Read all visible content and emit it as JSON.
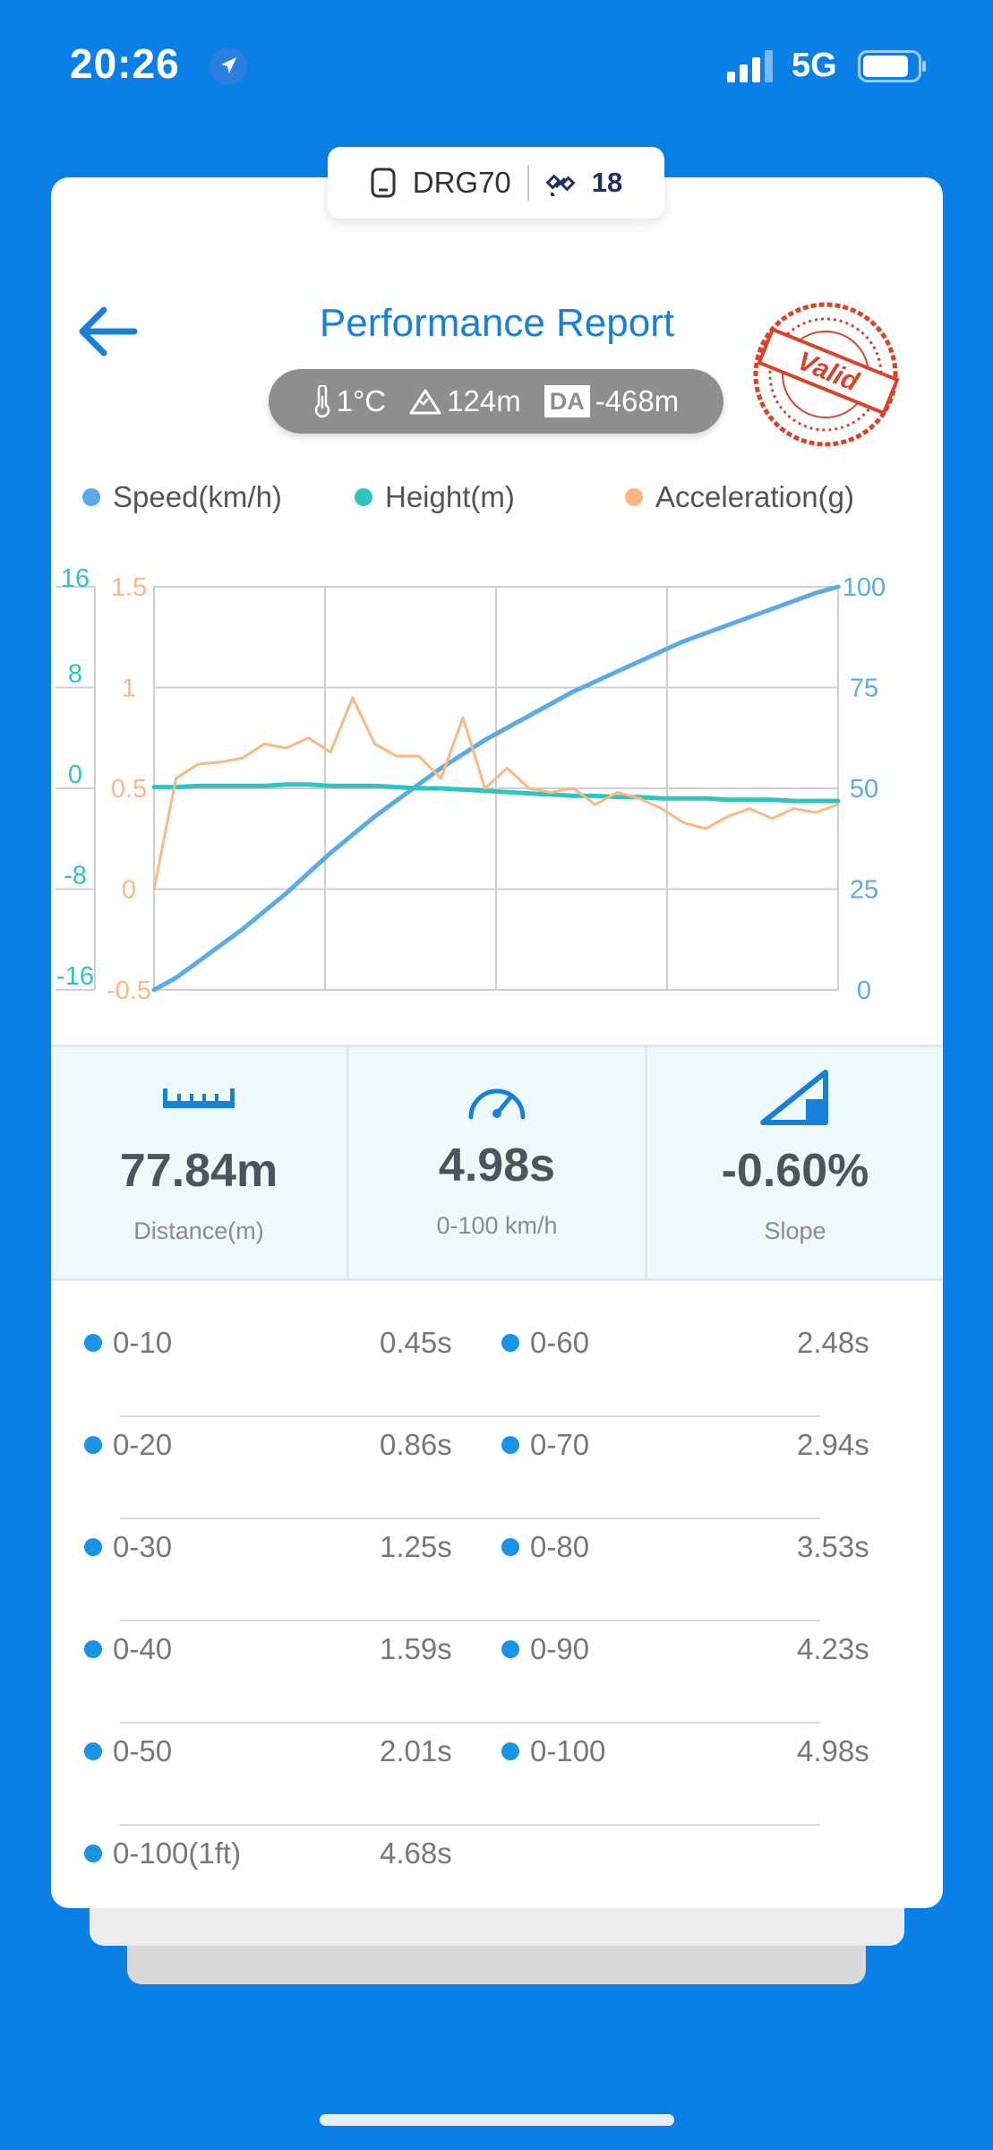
{
  "status_bar": {
    "time": "20:26",
    "network": "5G"
  },
  "device": {
    "name": "DRG70",
    "satellites": "18"
  },
  "header": {
    "title": "Performance Report",
    "temperature": "1°C",
    "altitude": "124m",
    "da_label": "DA",
    "density_altitude": "-468m",
    "stamp": "Valid"
  },
  "legend": [
    {
      "label": "Speed(km/h)",
      "color": "#5aabe8"
    },
    {
      "label": "Height(m)",
      "color": "#2fc4c0"
    },
    {
      "label": "Acceleration(g)",
      "color": "#fbb882"
    }
  ],
  "chart_data": {
    "type": "line",
    "axes": {
      "height": {
        "ticks": [
          "16",
          "8",
          "0",
          "-8",
          "-16"
        ],
        "ylim": [
          -16,
          16
        ]
      },
      "acceleration": {
        "ticks": [
          "1.5",
          "1",
          "0.5",
          "0",
          "-0.5"
        ],
        "ylim": [
          -0.5,
          1.5
        ]
      },
      "speed": {
        "ticks": [
          "100",
          "75",
          "50",
          "25",
          "0"
        ],
        "ylim": [
          0,
          100
        ]
      }
    },
    "grid": true,
    "series": [
      {
        "name": "Speed(km/h)",
        "axis": "speed",
        "color": "#5aabe8",
        "values": [
          0,
          3,
          7,
          11,
          15,
          19.5,
          24,
          29,
          34,
          38.5,
          43,
          47,
          51,
          55,
          58.5,
          62,
          65,
          68,
          71,
          74,
          76.5,
          79,
          81.5,
          84,
          86.5,
          88.5,
          90.5,
          92.5,
          94.5,
          96.5,
          98.5,
          100
        ]
      },
      {
        "name": "Height(m)",
        "axis": "height",
        "color": "#2fc4c0",
        "values": [
          0.1,
          0.1,
          0.2,
          0.2,
          0.2,
          0.2,
          0.3,
          0.3,
          0.2,
          0.2,
          0.2,
          0.1,
          0,
          0,
          -0.1,
          -0.2,
          -0.3,
          -0.4,
          -0.5,
          -0.6,
          -0.6,
          -0.7,
          -0.7,
          -0.8,
          -0.8,
          -0.8,
          -0.9,
          -0.9,
          -0.9,
          -1.0,
          -1.0,
          -1.0
        ]
      },
      {
        "name": "Acceleration(g)",
        "axis": "acceleration",
        "color": "#fbb882",
        "values": [
          0,
          0.55,
          0.62,
          0.63,
          0.65,
          0.72,
          0.7,
          0.75,
          0.68,
          0.95,
          0.72,
          0.66,
          0.66,
          0.55,
          0.85,
          0.5,
          0.6,
          0.5,
          0.48,
          0.5,
          0.42,
          0.48,
          0.45,
          0.4,
          0.33,
          0.3,
          0.36,
          0.4,
          0.35,
          0.4,
          0.38,
          0.42
        ]
      }
    ]
  },
  "stats": [
    {
      "value": "77.84m",
      "label": "Distance(m)",
      "icon": "ruler-icon"
    },
    {
      "value": "4.98s",
      "label": "0-100 km/h",
      "icon": "speedometer-icon"
    },
    {
      "value": "-0.60%",
      "label": "Slope",
      "icon": "slope-icon"
    }
  ],
  "splits": [
    {
      "left_label": "0-10",
      "left_time": "0.45s",
      "right_label": "0-60",
      "right_time": "2.48s"
    },
    {
      "left_label": "0-20",
      "left_time": "0.86s",
      "right_label": "0-70",
      "right_time": "2.94s"
    },
    {
      "left_label": "0-30",
      "left_time": "1.25s",
      "right_label": "0-80",
      "right_time": "3.53s"
    },
    {
      "left_label": "0-40",
      "left_time": "1.59s",
      "right_label": "0-90",
      "right_time": "4.23s"
    },
    {
      "left_label": "0-50",
      "left_time": "2.01s",
      "right_label": "0-100",
      "right_time": "4.98s"
    },
    {
      "left_label": "0-100(1ft)",
      "left_time": "4.68s"
    }
  ]
}
